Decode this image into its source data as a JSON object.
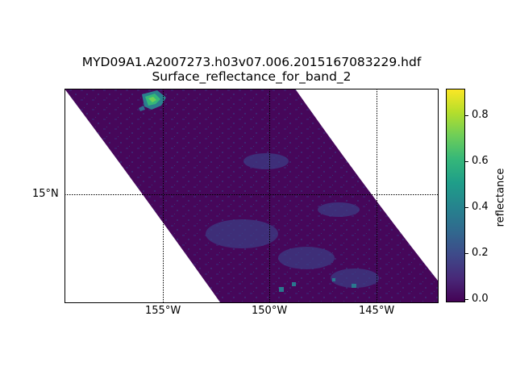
{
  "map": {
    "title_line1": "MYD09A1.A2007273.h03v07.006.2015167083229.hdf",
    "title_line2": "Surface_reflectance_for_band_2",
    "lon_labels": [
      "155°W",
      "150°W",
      "145°W"
    ],
    "lat_labels": [
      "15°N"
    ],
    "colorbar": {
      "label": "reflectance",
      "ticks": [
        "0.0",
        "0.2",
        "0.4",
        "0.6",
        "0.8"
      ],
      "range": [
        0.0,
        0.92
      ],
      "colormap": "viridis",
      "colors": [
        "#440154",
        "#482878",
        "#3e4989",
        "#31688e",
        "#26828e",
        "#1f9e89",
        "#35b779",
        "#6ece58",
        "#b5de2b",
        "#fde725"
      ]
    },
    "data_fill_color": "#46075a",
    "background_color": "#ffffff"
  }
}
